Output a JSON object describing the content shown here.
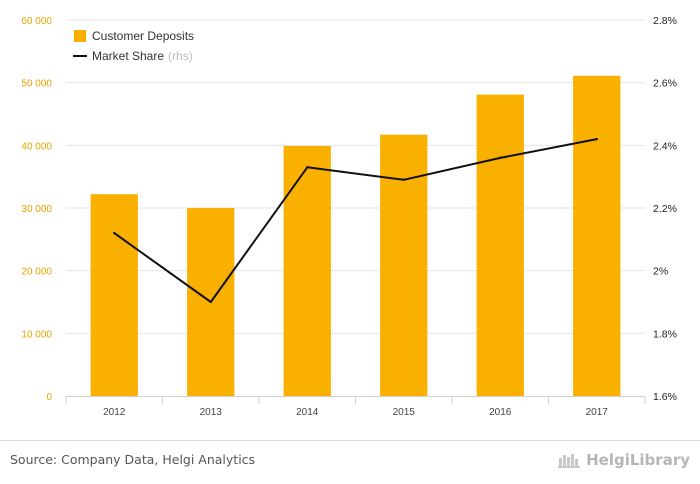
{
  "chart_data": {
    "type": "bar",
    "categories": [
      "2012",
      "2013",
      "2014",
      "2015",
      "2016",
      "2017"
    ],
    "series": [
      {
        "name": "Customer Deposits",
        "type": "bar",
        "axis": "left",
        "color": "#f9b000",
        "values": [
          32200,
          30000,
          39900,
          41700,
          48100,
          51100
        ]
      },
      {
        "name": "Market Share",
        "type": "line",
        "axis": "right",
        "color": "#111111",
        "values": [
          2.12,
          1.9,
          2.33,
          2.29,
          2.36,
          2.42
        ]
      }
    ],
    "y_left": {
      "range": [
        0,
        60000
      ],
      "ticks": [
        0,
        10000,
        20000,
        30000,
        40000,
        50000,
        60000
      ],
      "tick_labels": [
        "0",
        "10 000",
        "20 000",
        "30 000",
        "40 000",
        "50 000",
        "60 000"
      ]
    },
    "y_right": {
      "range": [
        1.6,
        2.8
      ],
      "ticks": [
        1.6,
        1.8,
        2.0,
        2.2,
        2.4,
        2.6,
        2.8
      ],
      "tick_labels": [
        "1.6%",
        "1.8%",
        "2%",
        "2.2%",
        "2.4%",
        "2.6%",
        "2.8%"
      ]
    },
    "grid": true,
    "legend": {
      "position": "top-left",
      "entries": [
        "Customer Deposits",
        "Market Share"
      ],
      "market_share_suffix": "(rhs)"
    }
  },
  "footer": {
    "source": "Source: Company Data, Helgi Analytics",
    "brand": "HelgiLibrary"
  }
}
